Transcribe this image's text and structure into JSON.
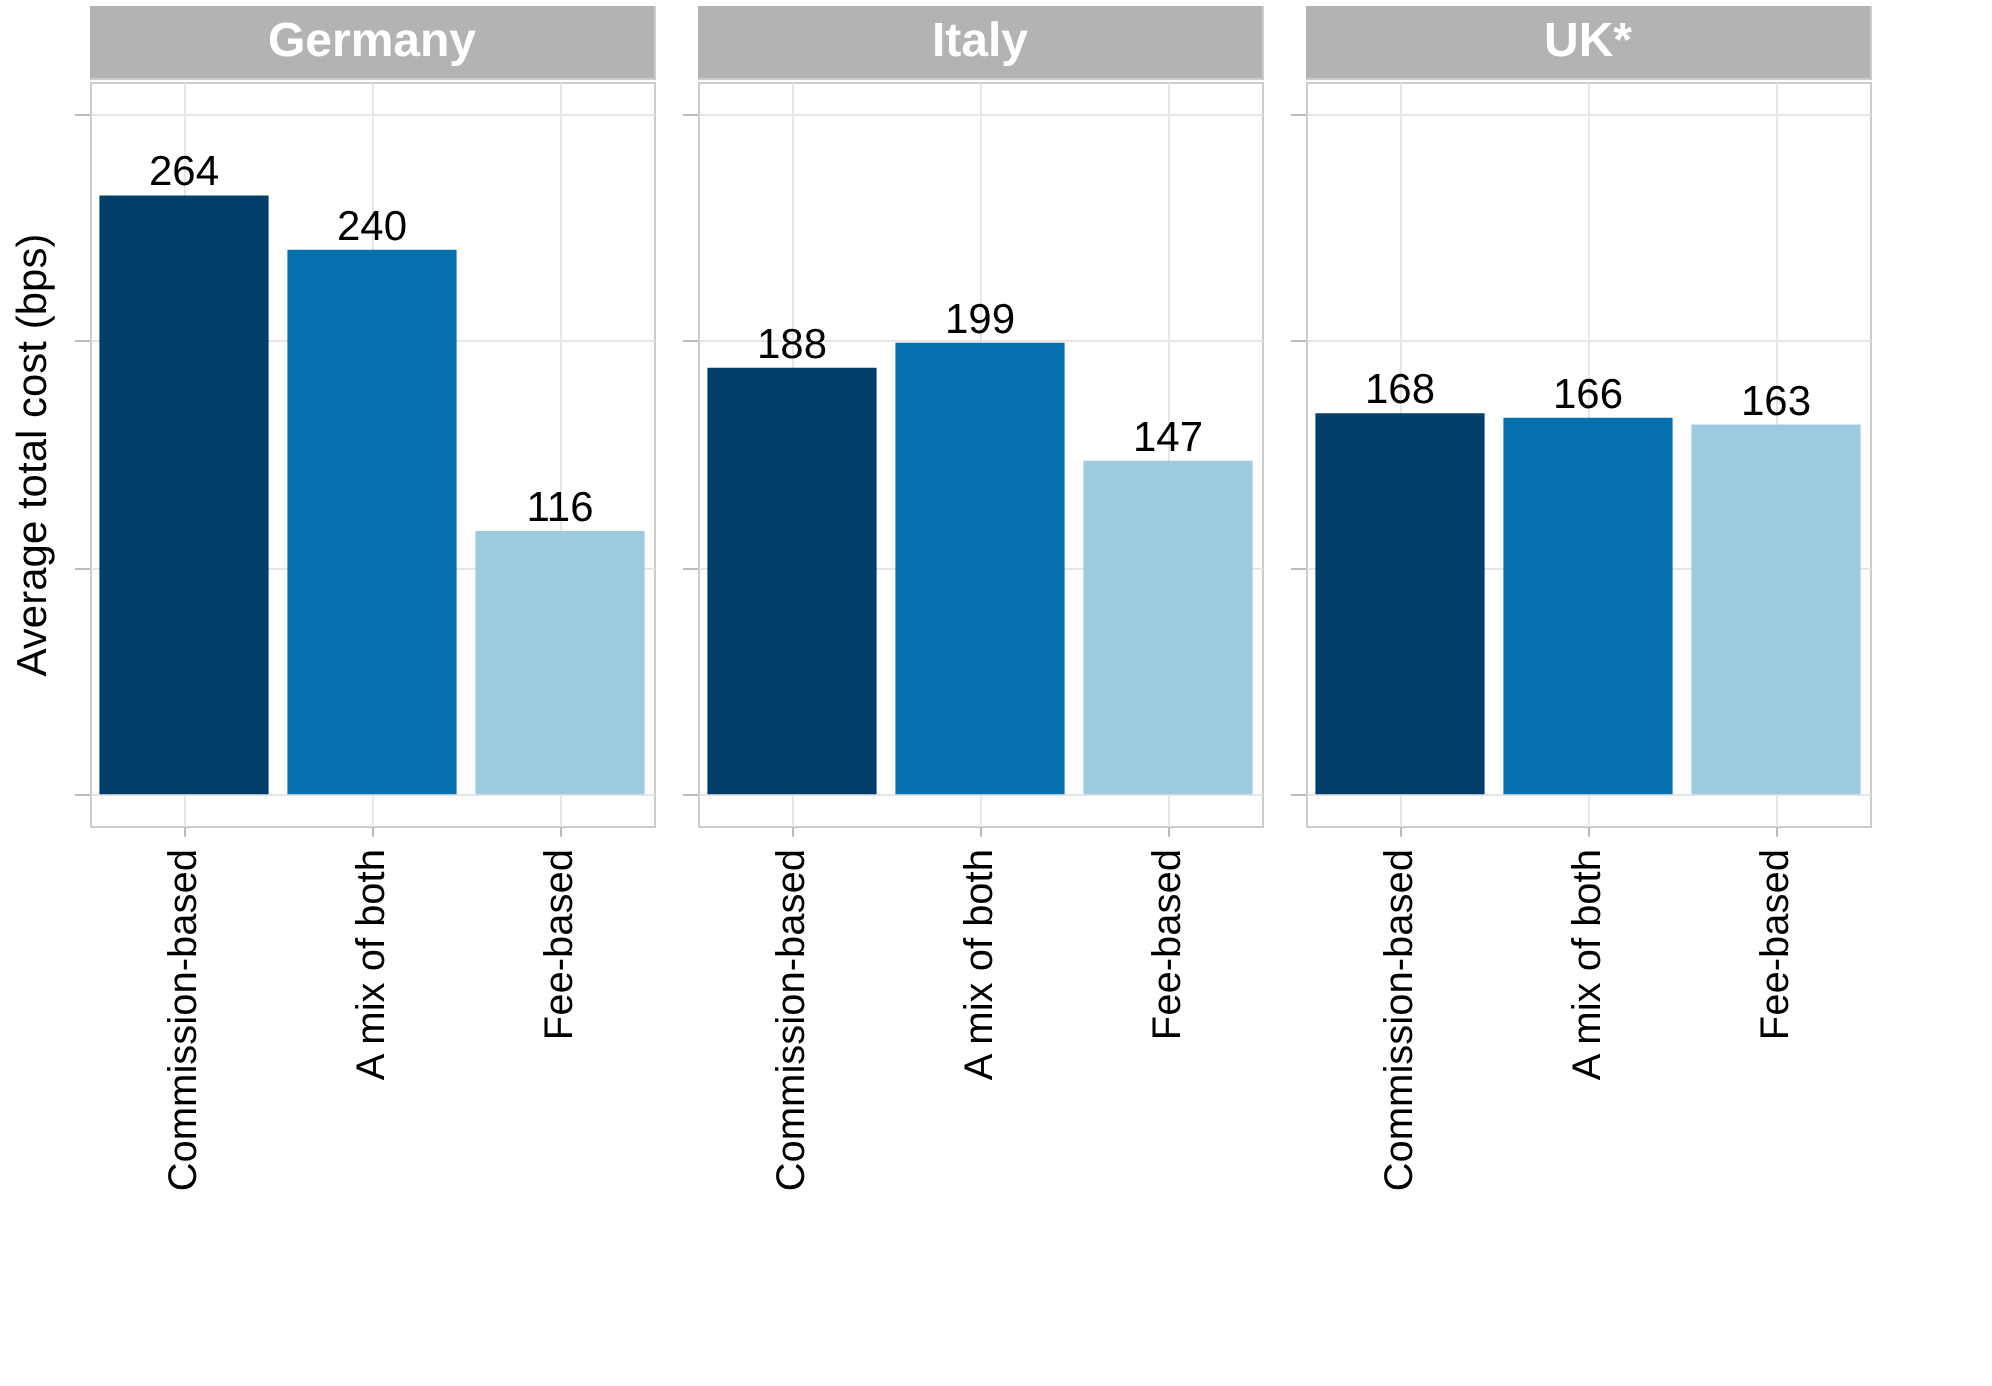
{
  "chart_data": [
    {
      "type": "bar",
      "title": "Germany",
      "ylabel": "Average total cost (bps)",
      "categories": [
        "Commission-based",
        "A mix of both",
        "Fee-based"
      ],
      "values": [
        264,
        240,
        116
      ],
      "colors": [
        "#023f6a",
        "#0570b0",
        "#9ecae1"
      ],
      "data_labels": true,
      "ylim": [
        -14,
        314
      ],
      "yticks": [
        {
          "value": 0,
          "label": null
        },
        {
          "value": 100,
          "label": null
        },
        {
          "value": 200,
          "label": null
        },
        {
          "value": 300,
          "label": null
        }
      ],
      "grid": true,
      "tick_labels": "x",
      "legend": false
    },
    {
      "type": "bar",
      "title": "Italy",
      "categories": [
        "Commission-based",
        "A mix of both",
        "Fee-based"
      ],
      "values": [
        188,
        199,
        147
      ],
      "colors": [
        "#023f6a",
        "#0570b0",
        "#9ecae1"
      ],
      "data_labels": true,
      "ylim": [
        -14,
        314
      ],
      "yticks": [
        {
          "value": 0,
          "label": null
        },
        {
          "value": 100,
          "label": null
        },
        {
          "value": 200,
          "label": null
        },
        {
          "value": 300,
          "label": null
        }
      ],
      "grid": true,
      "tick_labels": "x",
      "legend": false
    },
    {
      "type": "bar",
      "title": "UK*",
      "categories": [
        "Commission-based",
        "A mix of both",
        "Fee-based"
      ],
      "values": [
        168,
        166,
        163
      ],
      "colors": [
        "#023f6a",
        "#0570b0",
        "#9ecae1"
      ],
      "data_labels": true,
      "ylim": [
        -14,
        314
      ],
      "yticks": [
        {
          "value": 0,
          "label": null
        },
        {
          "value": 100,
          "label": null
        },
        {
          "value": 200,
          "label": null
        },
        {
          "value": 300,
          "label": null
        }
      ],
      "grid": true,
      "tick_labels": "x",
      "legend": false
    }
  ]
}
